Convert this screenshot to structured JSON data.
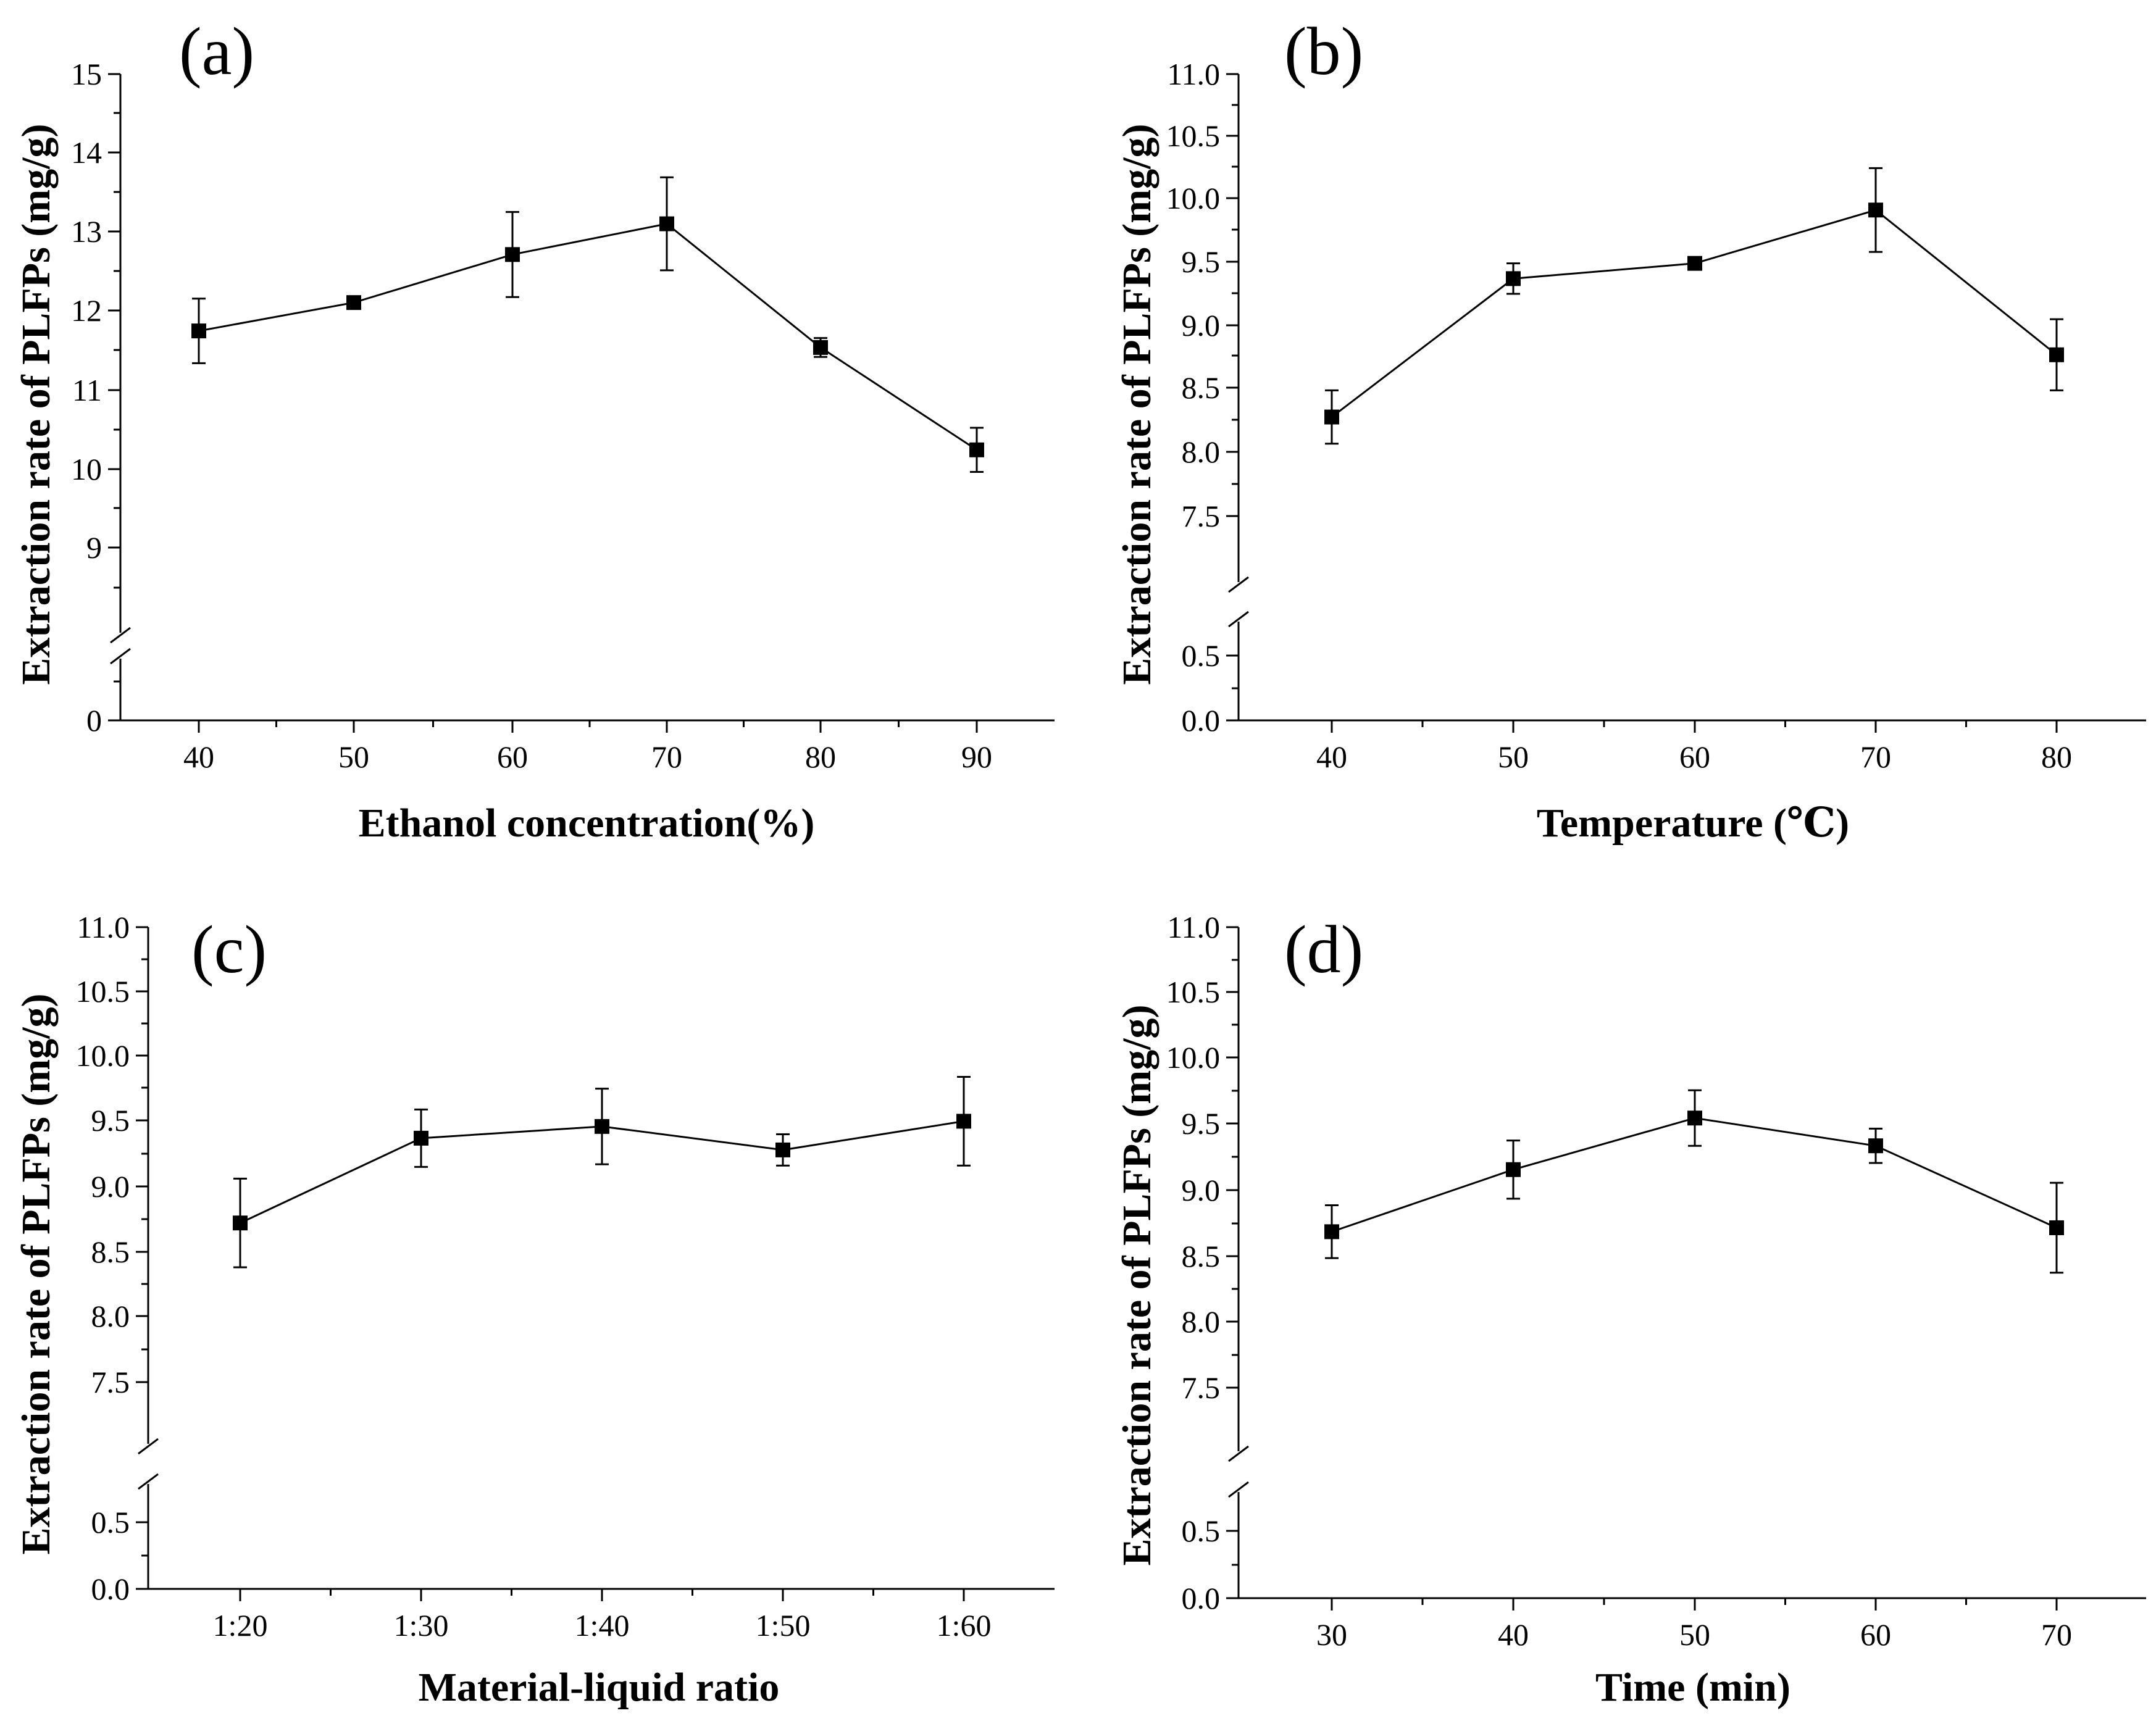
{
  "figure": {
    "panels": [
      {
        "panel_label": "(a)",
        "ylabel": "Extraction rate of PLFPs (mg/g)",
        "xlabel": "Ethanol concentration(%)"
      },
      {
        "panel_label": "(b)",
        "ylabel": "Extraction rate of PLFPs (mg/g)",
        "xlabel": "Temperature (℃)"
      },
      {
        "panel_label": "(c)",
        "ylabel": "Extraction rate of PLFPs (mg/g)",
        "xlabel": "Material-liquid ratio"
      },
      {
        "panel_label": "(d)",
        "ylabel": "Extraction rate of PLFPs (mg/g)",
        "xlabel": "Time (min)"
      }
    ]
  },
  "chart_data": [
    {
      "type": "line",
      "title": "",
      "xlabel": "Ethanol concentration(%)",
      "ylabel": "Extraction rate of PLFPs (mg/g)",
      "x": [
        40,
        50,
        60,
        70,
        80,
        90
      ],
      "x_tick_labels": [
        "40",
        "50",
        "60",
        "70",
        "80",
        "90"
      ],
      "xlim": [
        35,
        95
      ],
      "series": [
        {
          "values": [
            11.75,
            12.11,
            12.72,
            13.11,
            11.54,
            10.24
          ],
          "error": [
            0.41,
            0.07,
            0.54,
            0.59,
            0.12,
            0.28
          ],
          "marker": "square"
        }
      ],
      "ylim": [
        0,
        15
      ],
      "y_break": [
        0,
        8
      ],
      "y_tick_labels": [
        "0",
        "9",
        "10",
        "11",
        "12",
        "13",
        "14",
        "15"
      ],
      "grid": false,
      "legend": "none"
    },
    {
      "type": "line",
      "title": "",
      "xlabel": "Temperature (℃)",
      "ylabel": "Extraction rate of PLFPs (mg/g)",
      "x": [
        40,
        50,
        60,
        70,
        80
      ],
      "x_tick_labels": [
        "40",
        "50",
        "60",
        "70",
        "80"
      ],
      "xlim": [
        35,
        85
      ],
      "series": [
        {
          "values": [
            8.28,
            9.37,
            9.49,
            9.91,
            8.77
          ],
          "error": [
            0.21,
            0.12,
            0.04,
            0.33,
            0.28
          ],
          "marker": "square"
        }
      ],
      "ylim": [
        0,
        11
      ],
      "y_break": [
        0.7,
        7.2
      ],
      "y_tick_labels": [
        "0.0",
        "0.5",
        "7.5",
        "8.0",
        "8.5",
        "9.0",
        "9.5",
        "10.0",
        "10.5",
        "11.0"
      ],
      "grid": false,
      "legend": "none"
    },
    {
      "type": "line",
      "title": "",
      "xlabel": "Material-liquid ratio",
      "ylabel": "Extraction rate of PLFPs (mg/g)",
      "categories": [
        "1:20",
        "1:30",
        "1:40",
        "1:50",
        "1:60"
      ],
      "series": [
        {
          "values": [
            8.72,
            9.37,
            9.46,
            9.28,
            9.5
          ],
          "error": [
            0.34,
            0.22,
            0.29,
            0.12,
            0.34
          ],
          "marker": "square"
        }
      ],
      "ylim": [
        0,
        11
      ],
      "y_break": [
        0.7,
        7.2
      ],
      "y_tick_labels": [
        "0.0",
        "0.5",
        "7.5",
        "8.0",
        "8.5",
        "9.0",
        "9.5",
        "10.0",
        "10.5",
        "11.0"
      ],
      "grid": false,
      "legend": "none"
    },
    {
      "type": "line",
      "title": "",
      "xlabel": "Time (min)",
      "ylabel": "Extraction rate of PLFPs (mg/g)",
      "x": [
        30,
        40,
        50,
        60,
        70
      ],
      "x_tick_labels": [
        "30",
        "40",
        "50",
        "60",
        "70"
      ],
      "xlim": [
        25,
        75
      ],
      "series": [
        {
          "values": [
            8.68,
            9.15,
            9.54,
            9.33,
            8.71
          ],
          "error": [
            0.2,
            0.22,
            0.21,
            0.13,
            0.34
          ],
          "marker": "square"
        }
      ],
      "ylim": [
        0,
        11
      ],
      "y_break": [
        0.7,
        7.2
      ],
      "y_tick_labels": [
        "0.0",
        "0.5",
        "7.5",
        "8.0",
        "8.5",
        "9.0",
        "9.5",
        "10.0",
        "10.5",
        "11.0"
      ],
      "grid": false,
      "legend": "none"
    }
  ]
}
